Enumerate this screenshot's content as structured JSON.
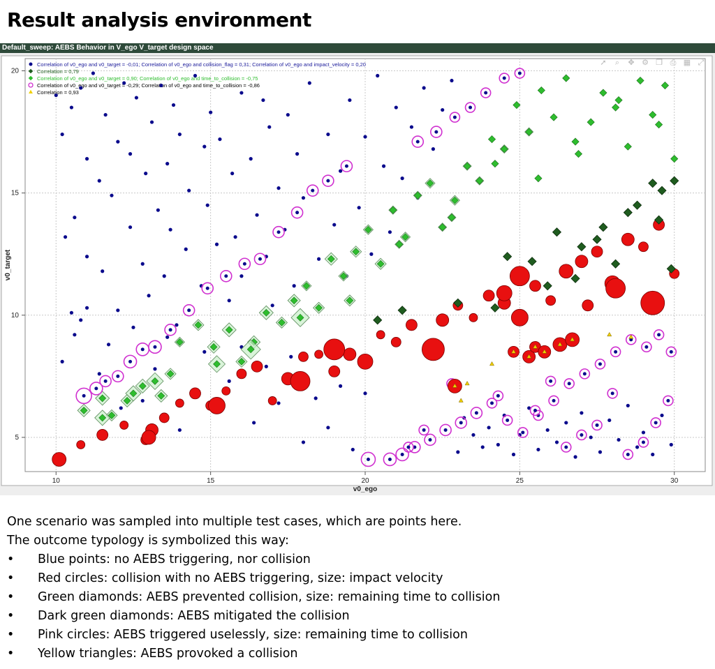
{
  "slide_title": "Result analysis environment",
  "window_title": "Default_sweep: AEBS Behavior in V_ego V_target design space",
  "toolbar_icons": [
    "pointer-icon",
    "zoom-icon",
    "pan-icon",
    "settings-icon",
    "copy-icon",
    "print-icon",
    "grid-icon",
    "fit-icon"
  ],
  "description": {
    "line1": "One scenario was sampled into multiple test cases, which are points here.",
    "line2": "The outcome typology is symbolized this way:",
    "bullets": [
      "Blue points: no AEBS triggering, nor collision",
      "Red circles: collision with no AEBS triggering, size: impact velocity",
      "Green diamonds: AEBS prevented collision, size: remaining time to collision",
      "Dark green diamonds: AEBS mitigated the collision",
      "Pink circles: AEBS triggered uselessly, size: remaining time to collision",
      "Yellow triangles: AEBS provoked a collision"
    ]
  },
  "chart_data": {
    "type": "scatter",
    "title": "",
    "xlabel": "v0_ego",
    "ylabel": "v0_target",
    "xlim": [
      9,
      31
    ],
    "ylim": [
      3.6,
      20.5
    ],
    "xticks": [
      10,
      15,
      20,
      25,
      30
    ],
    "yticks": [
      5,
      10,
      15,
      20
    ],
    "grid": true,
    "legend_position": "top-left",
    "colors": {
      "blue": "#0a0a8c",
      "red": "#e81010",
      "green": "#2ebd2e",
      "dark_green": "#1f5c1f",
      "pink": "#d030d0",
      "yellow": "#f0d000"
    },
    "legend": [
      {
        "marker": "circle",
        "color": "#0a0a8c",
        "text": "Correlation of v0_ego and v0_target = -0,01;   Correlation of v0_ego and collision_flag = 0,31;   Correlation of v0_ego and impact_velocity = 0,20",
        "text_color": "#1a1a9a"
      },
      {
        "marker": "diamond",
        "color": "#1f5c1f",
        "text": "Correlation = 0,79",
        "text_color": "#1f5c1f"
      },
      {
        "marker": "diamond",
        "color": "#2ebd2e",
        "text": "Correlation of v0_ego and v0_target = 0,90;   Correlation of v0_ego and time_to_collision = -0,75",
        "text_color": "#2ebd2e"
      },
      {
        "marker": "ring",
        "color": "#d030d0",
        "text": "Correlation of v0_ego and v0_target = -0,29;   Correlation of v0_ego and time_to_collision = -0,86",
        "text_color": "#000000"
      },
      {
        "marker": "triangle",
        "color": "#f0d000",
        "text": "Correlation = 0,93",
        "text_color": "#000000"
      }
    ],
    "series": [
      {
        "name": "no AEBS triggering, nor collision",
        "marker": "point",
        "color": "#0a0a8c",
        "x": [
          10,
          10.2,
          10.3,
          10.5,
          10.5,
          10.6,
          10.8,
          10.8,
          11,
          11,
          11.2,
          11.4,
          11.5,
          11.6,
          11.8,
          12,
          12,
          12.2,
          12.4,
          12.4,
          12.6,
          12.8,
          12.9,
          13,
          13.1,
          13.3,
          13.4,
          13.5,
          13.6,
          13.7,
          13.8,
          13.9,
          14,
          14.2,
          14.3,
          14.5,
          14.7,
          14.8,
          14.9,
          15,
          15.2,
          15.3,
          15.6,
          15.7,
          15.8,
          16,
          16,
          16.3,
          16.5,
          16.7,
          16.8,
          16.9,
          17,
          17.2,
          17.4,
          17.5,
          17.7,
          17.8,
          18,
          18.2,
          18.5,
          18.8,
          19,
          19.2,
          19.4,
          19.5,
          19.8,
          20,
          20.2,
          20.4,
          20.6,
          20.8,
          21,
          21.2,
          21.5,
          21.7,
          21.9,
          22.2,
          22.5,
          22.8,
          23,
          23.2,
          23.5,
          23.8,
          24,
          24.3,
          24.5,
          24.8,
          25,
          25.3,
          25.6,
          25.9,
          26.2,
          26.5,
          26.8,
          27,
          27.3,
          27.6,
          27.9,
          28.2,
          28.5,
          28.8,
          29,
          29.3,
          29.6,
          29.9,
          10.2,
          10.6,
          11,
          11.4,
          11.7,
          12.1,
          12.5,
          12.8,
          13.2,
          13.6,
          14,
          14.4,
          14.8,
          15.2,
          15.6,
          16,
          16.4,
          16.8,
          17.2,
          17.6,
          18,
          18.4,
          18.8,
          19.2,
          19.6,
          20
        ],
        "y": [
          19,
          17.4,
          13.2,
          18.5,
          10.1,
          14,
          19.3,
          9.8,
          16.4,
          12.4,
          19.9,
          15.5,
          11.8,
          18.2,
          14.9,
          17.1,
          10.2,
          19.5,
          13.6,
          16.6,
          18.9,
          12.1,
          15.8,
          10.8,
          17.9,
          14.3,
          19.4,
          11.6,
          16.2,
          13.5,
          18.6,
          9.6,
          17.4,
          12.7,
          15.1,
          19.8,
          11.2,
          16.9,
          14.5,
          18.3,
          12.9,
          17.2,
          10.6,
          15.8,
          13.2,
          19.1,
          11.6,
          16.4,
          14.1,
          18.8,
          12.4,
          17.7,
          10.4,
          15.2,
          13.5,
          18.2,
          11.2,
          16.6,
          14.8,
          19.5,
          12.3,
          17.4,
          13.7,
          15.9,
          11.6,
          18.8,
          14.4,
          17.3,
          12.5,
          19.8,
          16.1,
          13.4,
          18.5,
          15.6,
          17.7,
          14.8,
          19.3,
          16.8,
          18.4,
          19.6,
          4.4,
          5.8,
          5.1,
          4.6,
          5.4,
          4.7,
          5.9,
          4.3,
          5.1,
          6.2,
          4.5,
          5.3,
          4.8,
          5.6,
          4.2,
          6,
          5,
          4.4,
          5.7,
          4.9,
          6.3,
          4.6,
          5.2,
          4.3,
          5.9,
          4.7,
          8.1,
          9.2,
          10.3,
          7.6,
          8.8,
          6.2,
          9.5,
          6.5,
          7.8,
          9.1,
          5.3,
          6.9,
          8.5,
          6.1,
          7.3,
          8.7,
          5.6,
          7.9,
          6.4,
          8.3,
          4.8,
          6.6,
          5.4,
          7.1,
          4.5,
          6.8
        ]
      },
      {
        "name": "collision with no AEBS triggering",
        "marker": "circle",
        "color": "#e81010",
        "x": [
          10.1,
          10.8,
          11.5,
          12.2,
          12.9,
          13.1,
          13.5,
          14,
          14.5,
          15,
          15.5,
          16,
          16.5,
          17,
          17.5,
          18,
          18.5,
          19,
          19.5,
          20,
          20.5,
          21,
          21.5,
          22,
          22.5,
          23,
          23.5,
          24,
          24.5,
          25,
          25.5,
          26,
          26.5,
          27,
          27.5,
          28,
          28.5,
          29,
          29.5,
          30,
          25,
          22.2,
          19,
          17.9,
          15.2,
          13,
          27.2,
          28.1,
          29.3,
          24.5
        ],
        "y": [
          4.1,
          4.7,
          5.1,
          5.5,
          4.9,
          5.3,
          5.8,
          6.4,
          6.8,
          6.3,
          6.9,
          7.6,
          7.9,
          6.5,
          7.4,
          8.3,
          8.4,
          7.7,
          8.4,
          8.1,
          9.2,
          8.9,
          9.6,
          8.7,
          9.8,
          10.4,
          9.9,
          10.8,
          10.5,
          9.9,
          11.2,
          10.6,
          11.8,
          12.2,
          12.6,
          11.3,
          13.1,
          12.8,
          13.7,
          11.7,
          11.6,
          8.6,
          8.6,
          7.3,
          6.3,
          5,
          10.4,
          11.1,
          10.5,
          10.9
        ],
        "size": [
          10,
          6,
          8,
          6,
          7,
          9,
          7,
          6,
          8,
          7,
          6,
          7,
          8,
          6,
          9,
          7,
          6,
          8,
          9,
          11,
          6,
          7,
          8,
          6,
          9,
          7,
          6,
          8,
          9,
          12,
          8,
          7,
          10,
          9,
          8,
          11,
          9,
          7,
          8,
          7,
          14,
          16,
          15,
          14,
          12,
          10,
          8,
          14,
          17,
          11
        ]
      },
      {
        "name": "AEBS prevented collision",
        "marker": "diamond",
        "color": "#2ebd2e",
        "x": [
          10.9,
          11.5,
          11.8,
          12.3,
          12.8,
          13.4,
          13.7,
          14,
          14.6,
          15.1,
          15.6,
          16,
          16.4,
          16.8,
          17.3,
          17.7,
          18.1,
          18.5,
          18.9,
          19.3,
          19.7,
          20.1,
          20.5,
          20.9,
          21.3,
          21.7,
          22.1,
          22.5,
          22.9,
          23.3,
          23.7,
          24.1,
          24.5,
          24.9,
          25.3,
          25.7,
          26.1,
          26.5,
          26.9,
          27.3,
          27.7,
          28.1,
          28.5,
          28.9,
          29.3,
          29.7,
          30,
          17.9,
          16.3,
          15.2,
          13.2,
          12.5,
          11.5,
          19.5,
          21.1,
          22.8,
          24.2,
          25.6,
          26.8,
          28.2,
          29.5
        ],
        "y": [
          6.1,
          6.6,
          5.9,
          6.5,
          7.1,
          6.7,
          7.6,
          8.9,
          9.6,
          8.7,
          9.4,
          8.1,
          8.9,
          10.1,
          9.7,
          10.6,
          11.2,
          10.3,
          12.3,
          11.6,
          12.6,
          13.5,
          12.1,
          14.3,
          13.2,
          14.9,
          15.4,
          13.6,
          14.7,
          16.1,
          15.5,
          17.2,
          16.8,
          18.6,
          17.5,
          19.2,
          18.1,
          19.7,
          16.6,
          17.9,
          19.1,
          18.5,
          16.9,
          19.6,
          18.2,
          19.4,
          16.4,
          9.9,
          8.6,
          8,
          7.3,
          6.8,
          5.8,
          10.6,
          12.9,
          14,
          16.2,
          15.6,
          17.1,
          18.8,
          17.8
        ],
        "size": [
          9,
          10,
          8,
          9,
          10,
          9,
          8,
          7,
          8,
          9,
          10,
          8,
          9,
          10,
          8,
          9,
          7,
          8,
          9,
          7,
          8,
          7,
          8,
          6,
          7,
          6,
          7,
          6,
          7,
          6,
          6,
          5,
          6,
          5,
          6,
          5,
          5,
          5,
          5,
          5,
          5,
          5,
          5,
          5,
          5,
          5,
          5,
          13,
          14,
          12,
          12,
          11,
          11,
          8,
          6,
          6,
          5,
          5,
          5,
          5,
          5
        ]
      },
      {
        "name": "AEBS mitigated the collision",
        "marker": "diamond",
        "color": "#1f5c1f",
        "x": [
          20.4,
          21.2,
          23,
          24.6,
          25.4,
          26.2,
          27,
          27.7,
          28.5,
          29.3,
          29.9,
          26.8,
          28.1,
          29.6,
          24.2,
          25.9,
          27.5,
          28.8,
          29.5,
          30
        ],
        "y": [
          9.8,
          10.2,
          10.5,
          12.4,
          12.2,
          13.4,
          12.8,
          13.6,
          14.2,
          15.4,
          11.9,
          11.5,
          12.1,
          15.1,
          10.3,
          11.2,
          13.1,
          14.5,
          13.9,
          15.5
        ],
        "size": [
          6,
          6,
          6,
          6,
          6,
          6,
          6,
          6,
          6,
          6,
          6,
          6,
          6,
          6,
          6,
          6,
          6,
          6,
          6,
          6
        ]
      },
      {
        "name": "AEBS triggered uselessly",
        "marker": "ring",
        "color": "#d030d0",
        "x": [
          10.9,
          11.3,
          11.6,
          12,
          12.4,
          12.8,
          13.2,
          13.7,
          14.3,
          14.9,
          15.5,
          16.1,
          16.6,
          17.2,
          17.8,
          18.3,
          18.8,
          19.4,
          20.1,
          20.8,
          21.2,
          21.6,
          22.1,
          22.6,
          23.1,
          23.6,
          24.1,
          24.6,
          25.1,
          25.6,
          26.1,
          26.6,
          27.1,
          27.6,
          28.1,
          28.6,
          29.1,
          29.5,
          29.9,
          21.7,
          22.3,
          22.9,
          23.4,
          23.9,
          24.5,
          25,
          25.5,
          26,
          26.5,
          27,
          27.5,
          28,
          28.5,
          29,
          29.4,
          29.8,
          24.3,
          22.8,
          21.9,
          21.4
        ],
        "y": [
          6.7,
          7,
          7.3,
          7.5,
          8.1,
          8.6,
          8.7,
          9.4,
          10.2,
          11.1,
          11.6,
          12.1,
          12.3,
          13.4,
          14.2,
          15.1,
          15.5,
          16.1,
          4.1,
          4.1,
          4.3,
          4.6,
          4.9,
          5.3,
          5.6,
          6,
          6.4,
          5.7,
          5.2,
          5.9,
          6.5,
          7.2,
          7.6,
          8,
          8.5,
          9,
          8.7,
          9.2,
          8.5,
          17.1,
          17.5,
          18.1,
          18.5,
          19.1,
          19.7,
          19.9,
          6.1,
          7.3,
          4.6,
          5.1,
          5.5,
          6.8,
          4.3,
          4.8,
          5.6,
          6.5,
          6.7,
          7.2,
          5.3,
          4.6
        ],
        "size": [
          11,
          9,
          8,
          8,
          9,
          9,
          9,
          8,
          8,
          8,
          8,
          8,
          8,
          8,
          8,
          8,
          8,
          8,
          10,
          9,
          9,
          8,
          8,
          8,
          8,
          8,
          7,
          7,
          7,
          7,
          7,
          7,
          7,
          7,
          7,
          7,
          7,
          7,
          7,
          8,
          8,
          7,
          7,
          7,
          7,
          7,
          7,
          7,
          7,
          7,
          7,
          7,
          7,
          7,
          7,
          7,
          7,
          7,
          7,
          7
        ]
      },
      {
        "name": "AEBS provoked a collision",
        "marker": "triangle",
        "color": "#f0d000",
        "x": [
          22.9,
          23.1,
          23.3,
          24.1,
          24.8,
          25.3,
          25.5,
          25.8,
          26.3,
          26.7,
          27.9,
          28.6
        ],
        "y": [
          7.1,
          6.5,
          7.2,
          8,
          8.5,
          8.3,
          8.7,
          8.5,
          8.8,
          9,
          9.2,
          9.1
        ],
        "size": [
          10,
          4,
          4,
          4,
          8,
          9,
          8,
          9,
          10,
          10,
          4,
          4
        ]
      }
    ]
  }
}
